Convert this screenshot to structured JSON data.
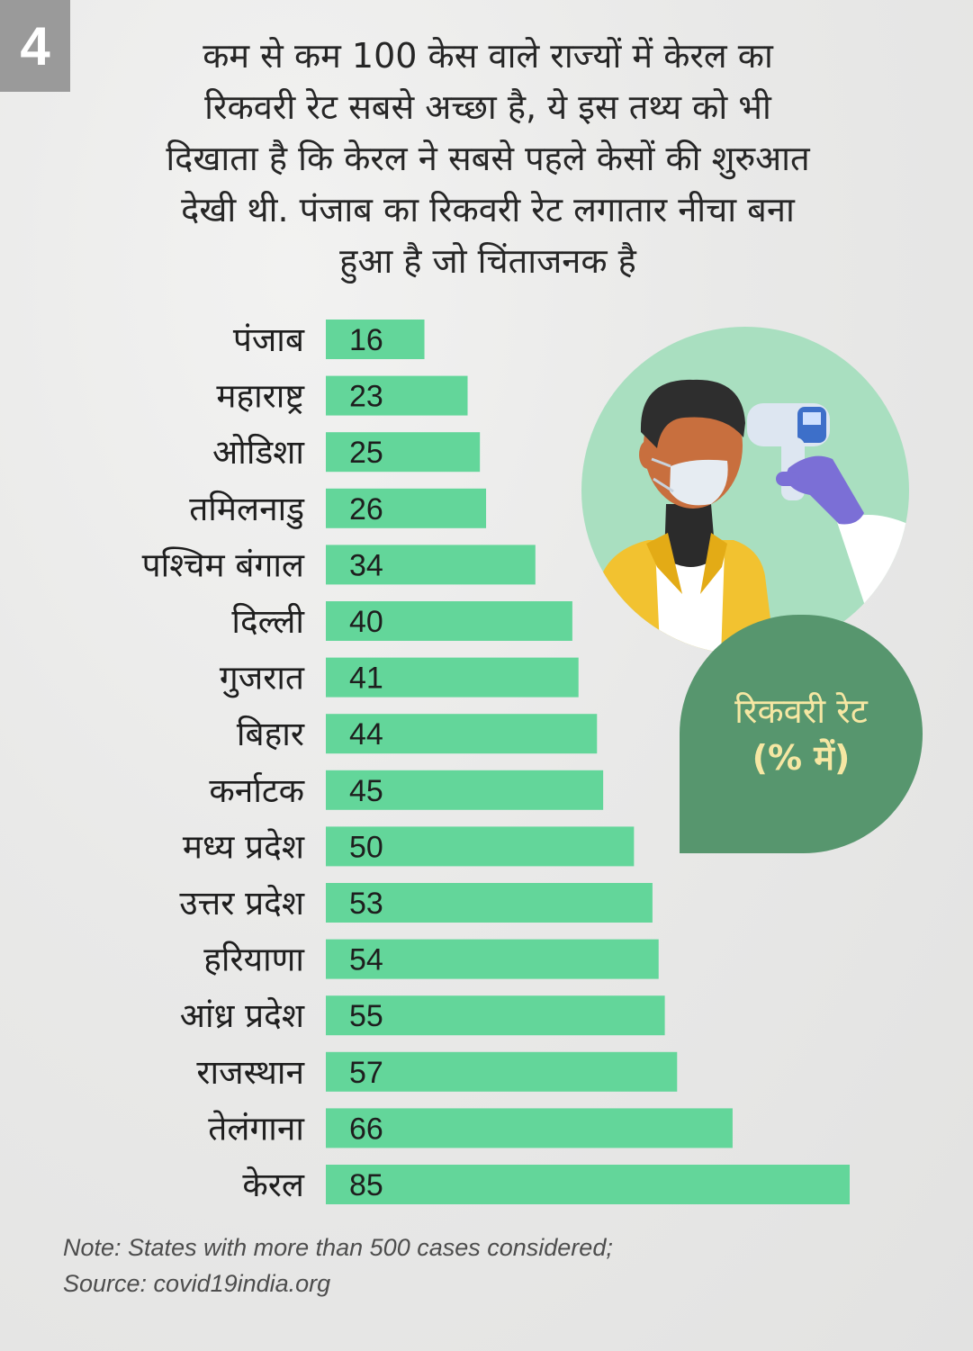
{
  "badge": "4",
  "headline": [
    "कम से कम 100 केस वाले राज्यों में केरल का",
    "रिकवरी रेट सबसे अच्छा है, ये इस तथ्य को भी",
    "दिखाता है कि केरल ने सबसे पहले केसों की शुरुआत",
    "देखी थी. पंजाब का रिकवरी रेट लगातार नीचा बना",
    "हुआ है जो चिंताजनक है"
  ],
  "legend_box": {
    "line1": "रिकवरी रेट",
    "line2": "(% में)"
  },
  "footer": {
    "note": "Note: States with more than 500 cases considered;",
    "source": "Source: covid19india.org"
  },
  "colors": {
    "bar": "#63d69a",
    "bubble": "#57966e",
    "bubble_text": "#f6e7a3",
    "illustration_circle": "#a9dfc0"
  },
  "illustration": "person-temperature-check-icon",
  "chart_data": {
    "type": "bar",
    "orientation": "horizontal",
    "categories": [
      "पंजाब",
      "महाराष्ट्र",
      "ओडिशा",
      "तमिलनाडु",
      "पश्चिम बंगाल",
      "दिल्ली",
      "गुजरात",
      "बिहार",
      "कर्नाटक",
      "मध्य प्रदेश",
      "उत्तर प्रदेश",
      "हरियाणा",
      "आंध्र प्रदेश",
      "राजस्थान",
      "तेलंगाना",
      "केरल"
    ],
    "values": [
      16,
      23,
      25,
      26,
      34,
      40,
      41,
      44,
      45,
      50,
      53,
      54,
      55,
      57,
      66,
      85
    ],
    "xlim": [
      0,
      85
    ],
    "grid": false
  }
}
